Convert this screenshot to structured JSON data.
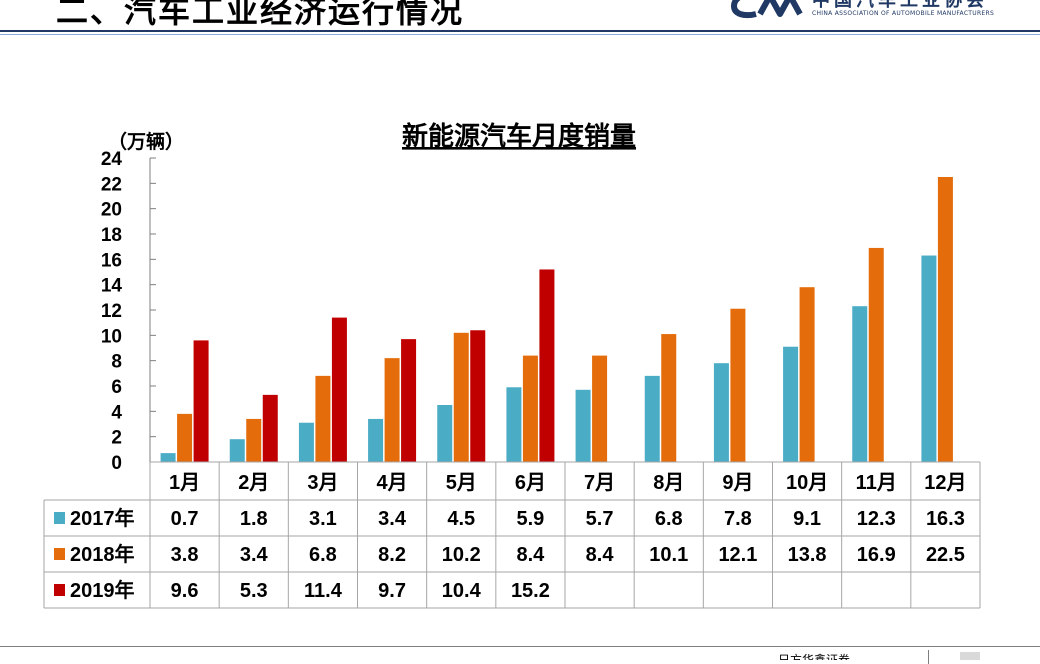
{
  "slide": {
    "title": "二、汽车工业经济运行情况",
    "logo_cn": "中国汽车工业协会",
    "logo_en": "CHINA ASSOCIATION OF AUTOMOBILE MANUFACTURERS",
    "logo_mark": "CAAM",
    "footer_text": "日方华鑫证券"
  },
  "colors": {
    "2017": "#4bacc6",
    "2018": "#e46c0a",
    "2019": "#c00000",
    "header_rule": "#1f3864"
  },
  "chart_data": {
    "type": "bar",
    "title": "新能源汽车月度销量",
    "ylabel": "（万辆）",
    "xlabel": "",
    "ylim": [
      0,
      24
    ],
    "yticks": [
      0,
      2,
      4,
      6,
      8,
      10,
      12,
      14,
      16,
      18,
      20,
      22,
      24
    ],
    "grid": false,
    "legend": "data-table",
    "categories": [
      "1月",
      "2月",
      "3月",
      "4月",
      "5月",
      "6月",
      "7月",
      "8月",
      "9月",
      "10月",
      "11月",
      "12月"
    ],
    "series": [
      {
        "name": "2017年",
        "values": [
          0.7,
          1.8,
          3.1,
          3.4,
          4.5,
          5.9,
          5.7,
          6.8,
          7.8,
          9.1,
          12.3,
          16.3
        ]
      },
      {
        "name": "2018年",
        "values": [
          3.8,
          3.4,
          6.8,
          8.2,
          10.2,
          8.4,
          8.4,
          10.1,
          12.1,
          13.8,
          16.9,
          22.5
        ]
      },
      {
        "name": "2019年",
        "values": [
          9.6,
          5.3,
          11.4,
          9.7,
          10.4,
          15.2,
          null,
          null,
          null,
          null,
          null,
          null
        ]
      }
    ]
  }
}
